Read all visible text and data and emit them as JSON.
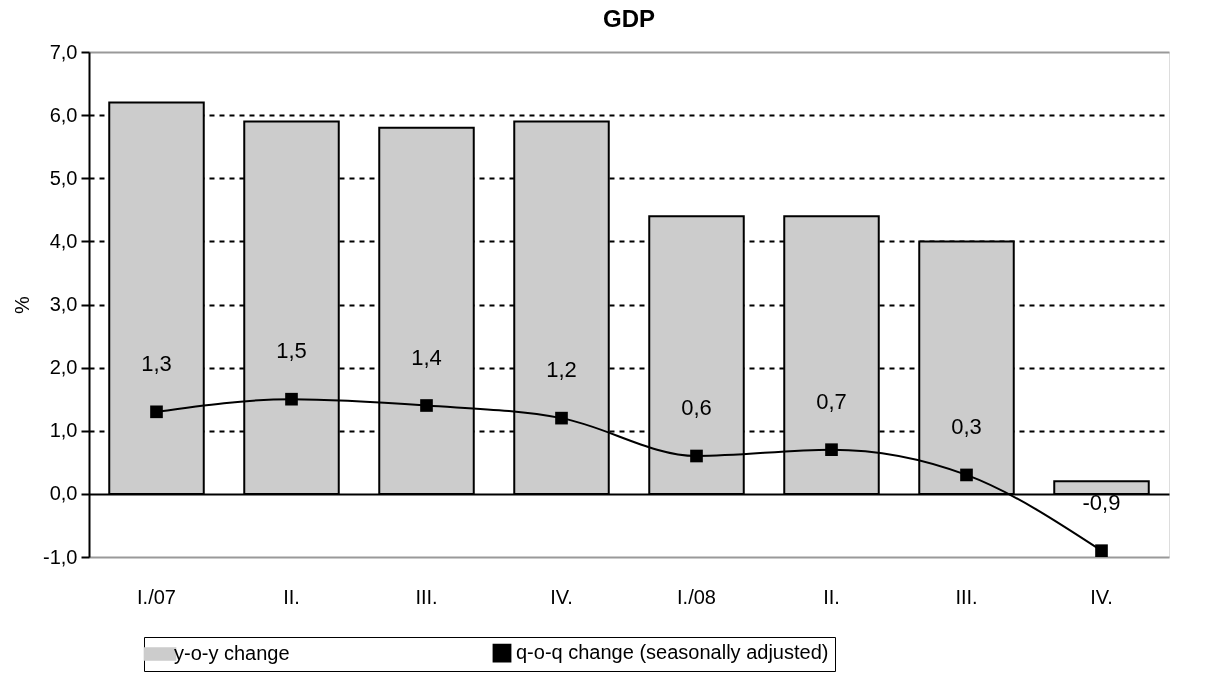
{
  "chart_data": {
    "type": "bar",
    "title": "GDP",
    "ylabel": "%",
    "categories": [
      "I./07",
      "II.",
      "III.",
      "IV.",
      "I./08",
      "II.",
      "III.",
      "IV."
    ],
    "series": [
      {
        "name": "y-o-y change",
        "color": "#cccccc",
        "values": [
          6.2,
          5.9,
          5.8,
          5.9,
          4.4,
          4.4,
          4.0,
          0.2
        ]
      },
      {
        "name": "q-o-q change (seasonally adjusted)",
        "type": "line",
        "color": "#000000",
        "marker": "square",
        "values": [
          1.3,
          1.5,
          1.4,
          1.2,
          0.6,
          0.7,
          0.3,
          -0.9
        ],
        "value_labels": [
          "1,3",
          "1,5",
          "1,4",
          "1,2",
          "0,6",
          "0,7",
          "0,3",
          "-0,9"
        ]
      }
    ],
    "ylim": [
      -1,
      7
    ],
    "yticks": [
      {
        "value": -1,
        "label": "-1,0"
      },
      {
        "value": 0,
        "label": "0,0"
      },
      {
        "value": 1,
        "label": "1,0"
      },
      {
        "value": 2,
        "label": "2,0"
      },
      {
        "value": 3,
        "label": "3,0"
      },
      {
        "value": 4,
        "label": "4,0"
      },
      {
        "value": 5,
        "label": "5,0"
      },
      {
        "value": 6,
        "label": "6,0"
      },
      {
        "value": 7,
        "label": "7,0"
      }
    ],
    "grid": "y",
    "legend": "bottom"
  }
}
